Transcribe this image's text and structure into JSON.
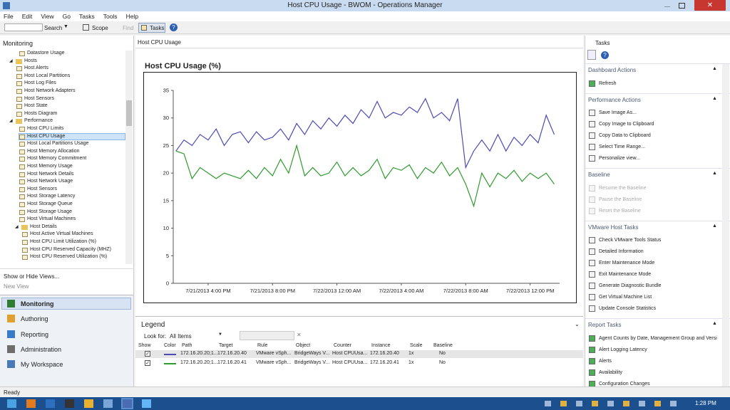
{
  "window": {
    "title": "Host CPU Usage - BWOM - Operations Manager"
  },
  "menu": [
    "File",
    "Edit",
    "View",
    "Go",
    "Tasks",
    "Tools",
    "Help"
  ],
  "toolbar": {
    "search": "Search",
    "scope": "Scope",
    "find": "Find",
    "tasks": "Tasks"
  },
  "left_pane": {
    "title": "Monitoring",
    "tree": [
      {
        "items": [
          "Datastore Usage"
        ]
      },
      {
        "folder": "Hosts",
        "items": [
          "Host Alerts",
          "Host Local Partitions",
          "Host Log Files",
          "Host Network Adapters",
          "Host Sensors",
          "Host State",
          "Hosts Diagram"
        ]
      },
      {
        "folder": "Performance",
        "items": [
          "Host CPU Limits",
          "Host CPU Usage",
          "Host Local Partitions Usage",
          "Host Memory Allocation",
          "Host Memory Commitment",
          "Host Memory Usage",
          "Host Network Details",
          "Host Network Usage",
          "Host Sensors",
          "Host Storage Latency",
          "Host Storage Queue",
          "Host Storage Usage",
          "Host Virtual Machines"
        ]
      },
      {
        "folder": "Host Details",
        "items": [
          "Host Active Virtual Machines",
          "Host CPU Limit Utilization (%)",
          "Host CPU Reserved Capacity (MHZ)",
          "Host CPU Reserved Utilization (%)"
        ]
      }
    ],
    "show_hide": "Show or Hide Views...",
    "new_view": "New View",
    "nav": [
      "Monitoring",
      "Authoring",
      "Reporting",
      "Administration",
      "My Workspace"
    ]
  },
  "center": {
    "view_title": "Host CPU Usage",
    "legend": {
      "title": "Legend",
      "look_for": "Look for:",
      "filter": "All Items",
      "headers": [
        "Show",
        "Color",
        "Path",
        "Target",
        "Rule",
        "Object",
        "Counter",
        "Instance",
        "Scale",
        "Baseline"
      ],
      "rows": [
        {
          "show": true,
          "cells": [
            "172.16.20.20;1...",
            "172.16.20.40",
            "VMware vSph...",
            "BridgeWays V...",
            "Host CPUUsa...",
            "172.16.20.40",
            "1x",
            "No"
          ]
        },
        {
          "show": true,
          "cells": [
            "172.16.20.20;1...",
            "172.16.20.41",
            "VMware vSph...",
            "BridgeWays V...",
            "Host CPUUsa...",
            "172.16.20.41",
            "1x",
            "No"
          ]
        }
      ]
    }
  },
  "chart_data": {
    "type": "line",
    "title": "Host CPU Usage (%)",
    "x": [
      "2013-07-21T14:00",
      "2013-07-21T14:30",
      "2013-07-21T15:00",
      "2013-07-21T15:30",
      "2013-07-21T16:00",
      "2013-07-21T16:30",
      "2013-07-21T17:00",
      "2013-07-21T17:30",
      "2013-07-21T18:00",
      "2013-07-21T18:30",
      "2013-07-21T19:00",
      "2013-07-21T19:30",
      "2013-07-21T20:00",
      "2013-07-21T20:30",
      "2013-07-21T21:00",
      "2013-07-21T21:30",
      "2013-07-21T22:00",
      "2013-07-21T22:30",
      "2013-07-21T23:00",
      "2013-07-21T23:30",
      "2013-07-22T00:00",
      "2013-07-22T00:30",
      "2013-07-22T01:00",
      "2013-07-22T01:30",
      "2013-07-22T02:00",
      "2013-07-22T02:30",
      "2013-07-22T03:00",
      "2013-07-22T03:30",
      "2013-07-22T04:00",
      "2013-07-22T04:30",
      "2013-07-22T05:00",
      "2013-07-22T05:30",
      "2013-07-22T06:00",
      "2013-07-22T06:30",
      "2013-07-22T07:00",
      "2013-07-22T07:30",
      "2013-07-22T08:00",
      "2013-07-22T08:30",
      "2013-07-22T09:00",
      "2013-07-22T09:30",
      "2013-07-22T10:00",
      "2013-07-22T10:30",
      "2013-07-22T11:00",
      "2013-07-22T11:30",
      "2013-07-22T12:00",
      "2013-07-22T12:30",
      "2013-07-22T13:00",
      "2013-07-22T13:30"
    ],
    "series": [
      {
        "color": "#4b4bb3",
        "values": [
          24,
          26,
          25,
          27,
          26,
          28,
          25,
          27,
          27.5,
          25.5,
          27.5,
          26,
          26.5,
          28,
          26,
          29,
          27,
          29.5,
          28,
          30,
          28.5,
          30.5,
          29,
          31.5,
          30,
          33,
          30,
          31,
          30.5,
          32,
          31,
          33.5,
          30,
          31,
          29.5,
          33.5,
          21,
          24,
          26,
          24,
          27,
          24,
          26.5,
          25,
          27,
          25.5,
          30.5,
          27
        ]
      },
      {
        "color": "#2e9b2e",
        "values": [
          24,
          23.5,
          19,
          21,
          20,
          19,
          20,
          19.5,
          19,
          20.5,
          19,
          21,
          19.5,
          22.5,
          20,
          25,
          19.5,
          21,
          19.5,
          20,
          22,
          19.5,
          21,
          19.5,
          20.5,
          22.5,
          19,
          21,
          20.5,
          21.5,
          19,
          21,
          20,
          22,
          19.5,
          21,
          18,
          14,
          20,
          17.5,
          20,
          19,
          20.5,
          18.5,
          20,
          19,
          20,
          18
        ]
      }
    ],
    "xlim": [
      "2013-07-21T13:50",
      "2013-07-22T13:50"
    ],
    "xticks": [
      {
        "value": "2013-07-21T16:00",
        "label": "7/21/2013 4:00 PM"
      },
      {
        "value": "2013-07-21T20:00",
        "label": "7/21/2013 8:00 PM"
      },
      {
        "value": "2013-07-22T00:00",
        "label": "7/22/2013 12:00 AM"
      },
      {
        "value": "2013-07-22T04:00",
        "label": "7/22/2013 4:00 AM"
      },
      {
        "value": "2013-07-22T08:00",
        "label": "7/22/2013 8:00 AM"
      },
      {
        "value": "2013-07-22T12:00",
        "label": "7/22/2013 12:00 PM"
      }
    ],
    "ylim": [
      0,
      35
    ],
    "yticks": [
      0,
      5,
      10,
      15,
      20,
      25,
      30,
      35
    ]
  },
  "tasks_pane": {
    "title": "Tasks",
    "sections": [
      {
        "title": "Dashboard Actions",
        "items": [
          "Refresh"
        ]
      },
      {
        "title": "Performance Actions",
        "items": [
          "Save Image As...",
          "Copy Image to Clipboard",
          "Copy Data to Clipboard",
          "Select Time Range...",
          "Personalize view..."
        ]
      },
      {
        "title": "Baseline",
        "disabled": true,
        "items": [
          "Resume the Baseline",
          "Pause the Baseline",
          "Reset the Baseline"
        ]
      },
      {
        "title": "VMware Host Tasks",
        "items": [
          "Check VMware Tools Status",
          "Detailed Information",
          "Enter Maintenance Mode",
          "Exit Maintenance Mode",
          "Generate Diagnostic Bundle",
          "Get Virtual Machine List",
          "Update Console Statistics"
        ]
      },
      {
        "title": "Report Tasks",
        "items": [
          "Agent Counts by Date, Management Group and Versi",
          "Alert Logging Latency",
          "Alerts",
          "Availability",
          "Configuration Changes"
        ]
      }
    ]
  },
  "status": "Ready",
  "taskbar": {
    "time": "1:28 PM"
  }
}
